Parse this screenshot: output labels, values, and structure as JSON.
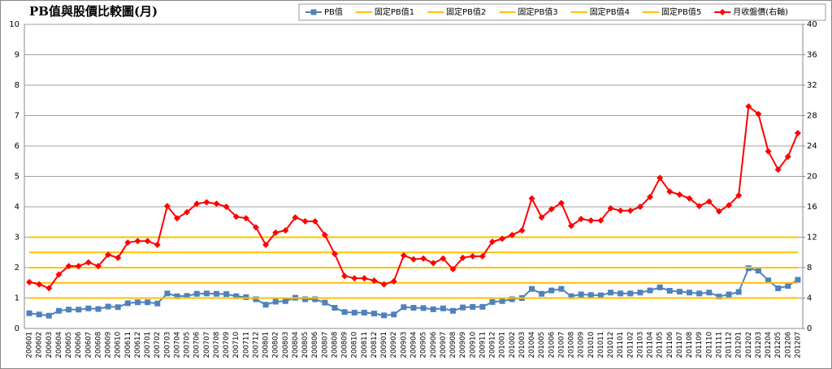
{
  "chart_data": {
    "type": "line",
    "title": "PB值與股價比較圖(月)",
    "categories": [
      "200601",
      "200602",
      "200603",
      "200604",
      "200605",
      "200606",
      "200607",
      "200608",
      "200609",
      "200610",
      "200611",
      "200612",
      "200701",
      "200702",
      "200703",
      "200704",
      "200705",
      "200706",
      "200707",
      "200708",
      "200709",
      "200710",
      "200711",
      "200712",
      "200801",
      "200802",
      "200803",
      "200804",
      "200805",
      "200806",
      "200807",
      "200808",
      "200809",
      "200810",
      "200811",
      "200812",
      "200901",
      "200902",
      "200903",
      "200904",
      "200905",
      "200906",
      "200907",
      "200908",
      "200909",
      "200910",
      "200911",
      "200912",
      "201001",
      "201002",
      "201003",
      "201004",
      "201005",
      "201006",
      "201007",
      "201008",
      "201009",
      "201010",
      "201011",
      "201012",
      "201101",
      "201102",
      "201103",
      "201104",
      "201105",
      "201106",
      "201107",
      "201108",
      "201109",
      "201110",
      "201111",
      "201112",
      "201201",
      "201202",
      "201203",
      "201204",
      "201205",
      "201206",
      "201207"
    ],
    "series": [
      {
        "name": "PB值",
        "color": "#4f81bd",
        "marker": "square",
        "values": [
          0.5,
          0.46,
          0.42,
          0.58,
          0.62,
          0.62,
          0.66,
          0.64,
          0.72,
          0.7,
          0.83,
          0.86,
          0.86,
          0.82,
          1.15,
          1.06,
          1.07,
          1.14,
          1.15,
          1.14,
          1.13,
          1.06,
          1.03,
          0.96,
          0.78,
          0.88,
          0.9,
          1.01,
          0.96,
          0.96,
          0.85,
          0.68,
          0.54,
          0.52,
          0.52,
          0.49,
          0.43,
          0.46,
          0.7,
          0.68,
          0.67,
          0.63,
          0.66,
          0.58,
          0.69,
          0.71,
          0.71,
          0.87,
          0.9,
          0.96,
          1.0,
          1.3,
          1.14,
          1.25,
          1.3,
          1.06,
          1.12,
          1.1,
          1.09,
          1.18,
          1.15,
          1.15,
          1.18,
          1.25,
          1.35,
          1.24,
          1.21,
          1.18,
          1.15,
          1.18,
          1.05,
          1.12,
          1.2,
          1.98,
          1.9,
          1.58,
          1.32,
          1.4,
          1.6
        ]
      },
      {
        "name": "固定PB值1",
        "color": "#ffc000",
        "values": [
          1,
          1,
          1,
          1,
          1,
          1,
          1,
          1,
          1,
          1,
          1,
          1,
          1,
          1,
          1,
          1,
          1,
          1,
          1,
          1,
          1,
          1,
          1,
          1,
          1,
          1,
          1,
          1,
          1,
          1,
          1,
          1,
          1,
          1,
          1,
          1,
          1,
          1,
          1,
          1,
          1,
          1,
          1,
          1,
          1,
          1,
          1,
          1,
          1,
          1,
          1,
          1,
          1,
          1,
          1,
          1,
          1,
          1,
          1,
          1,
          1,
          1,
          1,
          1,
          1,
          1,
          1,
          1,
          1,
          1,
          1,
          1,
          1,
          1,
          1,
          1,
          1,
          1,
          1
        ]
      },
      {
        "name": "固定PB值2",
        "color": "#ffc000",
        "values": [
          1.5,
          1.5,
          1.5,
          1.5,
          1.5,
          1.5,
          1.5,
          1.5,
          1.5,
          1.5,
          1.5,
          1.5,
          1.5,
          1.5,
          1.5,
          1.5,
          1.5,
          1.5,
          1.5,
          1.5,
          1.5,
          1.5,
          1.5,
          1.5,
          1.5,
          1.5,
          1.5,
          1.5,
          1.5,
          1.5,
          1.5,
          1.5,
          1.5,
          1.5,
          1.5,
          1.5,
          1.5,
          1.5,
          1.5,
          1.5,
          1.5,
          1.5,
          1.5,
          1.5,
          1.5,
          1.5,
          1.5,
          1.5,
          1.5,
          1.5,
          1.5,
          1.5,
          1.5,
          1.5,
          1.5,
          1.5,
          1.5,
          1.5,
          1.5,
          1.5,
          1.5,
          1.5,
          1.5,
          1.5,
          1.5,
          1.5,
          1.5,
          1.5,
          1.5,
          1.5,
          1.5,
          1.5,
          1.5,
          1.5,
          1.5,
          1.5,
          1.5,
          1.5,
          1.5
        ]
      },
      {
        "name": "固定PB值3",
        "color": "#ffc000",
        "values": [
          2,
          2,
          2,
          2,
          2,
          2,
          2,
          2,
          2,
          2,
          2,
          2,
          2,
          2,
          2,
          2,
          2,
          2,
          2,
          2,
          2,
          2,
          2,
          2,
          2,
          2,
          2,
          2,
          2,
          2,
          2,
          2,
          2,
          2,
          2,
          2,
          2,
          2,
          2,
          2,
          2,
          2,
          2,
          2,
          2,
          2,
          2,
          2,
          2,
          2,
          2,
          2,
          2,
          2,
          2,
          2,
          2,
          2,
          2,
          2,
          2,
          2,
          2,
          2,
          2,
          2,
          2,
          2,
          2,
          2,
          2,
          2,
          2,
          2,
          2,
          2,
          2,
          2,
          2
        ]
      },
      {
        "name": "固定PB值4",
        "color": "#ffc000",
        "values": [
          2.5,
          2.5,
          2.5,
          2.5,
          2.5,
          2.5,
          2.5,
          2.5,
          2.5,
          2.5,
          2.5,
          2.5,
          2.5,
          2.5,
          2.5,
          2.5,
          2.5,
          2.5,
          2.5,
          2.5,
          2.5,
          2.5,
          2.5,
          2.5,
          2.5,
          2.5,
          2.5,
          2.5,
          2.5,
          2.5,
          2.5,
          2.5,
          2.5,
          2.5,
          2.5,
          2.5,
          2.5,
          2.5,
          2.5,
          2.5,
          2.5,
          2.5,
          2.5,
          2.5,
          2.5,
          2.5,
          2.5,
          2.5,
          2.5,
          2.5,
          2.5,
          2.5,
          2.5,
          2.5,
          2.5,
          2.5,
          2.5,
          2.5,
          2.5,
          2.5,
          2.5,
          2.5,
          2.5,
          2.5,
          2.5,
          2.5,
          2.5,
          2.5,
          2.5,
          2.5,
          2.5,
          2.5,
          2.5,
          2.5,
          2.5,
          2.5,
          2.5,
          2.5,
          2.5
        ]
      },
      {
        "name": "固定PB值5",
        "color": "#ffc000",
        "values": [
          3,
          3,
          3,
          3,
          3,
          3,
          3,
          3,
          3,
          3,
          3,
          3,
          3,
          3,
          3,
          3,
          3,
          3,
          3,
          3,
          3,
          3,
          3,
          3,
          3,
          3,
          3,
          3,
          3,
          3,
          3,
          3,
          3,
          3,
          3,
          3,
          3,
          3,
          3,
          3,
          3,
          3,
          3,
          3,
          3,
          3,
          3,
          3,
          3,
          3,
          3,
          3,
          3,
          3,
          3,
          3,
          3,
          3,
          3,
          3,
          3,
          3,
          3,
          3,
          3,
          3,
          3,
          3,
          3,
          3,
          3,
          3,
          3,
          3,
          3,
          3,
          3,
          3,
          3
        ]
      },
      {
        "name": "月收盤價(右軸)",
        "color": "#ff0000",
        "marker": "diamond",
        "axis": "y2",
        "values": [
          6.1,
          5.8,
          5.3,
          7.1,
          8.2,
          8.2,
          8.7,
          8.2,
          9.7,
          9.3,
          11.3,
          11.5,
          11.5,
          11.0,
          16.1,
          14.5,
          15.3,
          16.4,
          16.6,
          16.4,
          16.0,
          14.7,
          14.5,
          13.3,
          11.0,
          12.6,
          12.9,
          14.6,
          14.1,
          14.1,
          12.3,
          9.8,
          6.9,
          6.6,
          6.6,
          6.3,
          5.8,
          6.2,
          9.6,
          9.1,
          9.2,
          8.6,
          9.2,
          7.8,
          9.3,
          9.5,
          9.5,
          11.4,
          11.8,
          12.3,
          12.9,
          17.1,
          14.6,
          15.7,
          16.5,
          13.5,
          14.4,
          14.2,
          14.2,
          15.8,
          15.5,
          15.5,
          16.0,
          17.3,
          19.8,
          18.0,
          17.6,
          17.1,
          16.1,
          16.7,
          15.4,
          16.2,
          17.5,
          29.2,
          28.2,
          23.3,
          20.9,
          22.6,
          25.7
        ]
      }
    ],
    "ylim": [
      0,
      10
    ],
    "yticks": [
      0,
      1,
      2,
      3,
      4,
      5,
      6,
      7,
      8,
      9,
      10
    ],
    "y2lim": [
      0,
      40
    ],
    "y2ticks": [
      0,
      4,
      8,
      12,
      16,
      20,
      24,
      28,
      32,
      36,
      40
    ],
    "grid": true,
    "legend": "top-right"
  }
}
